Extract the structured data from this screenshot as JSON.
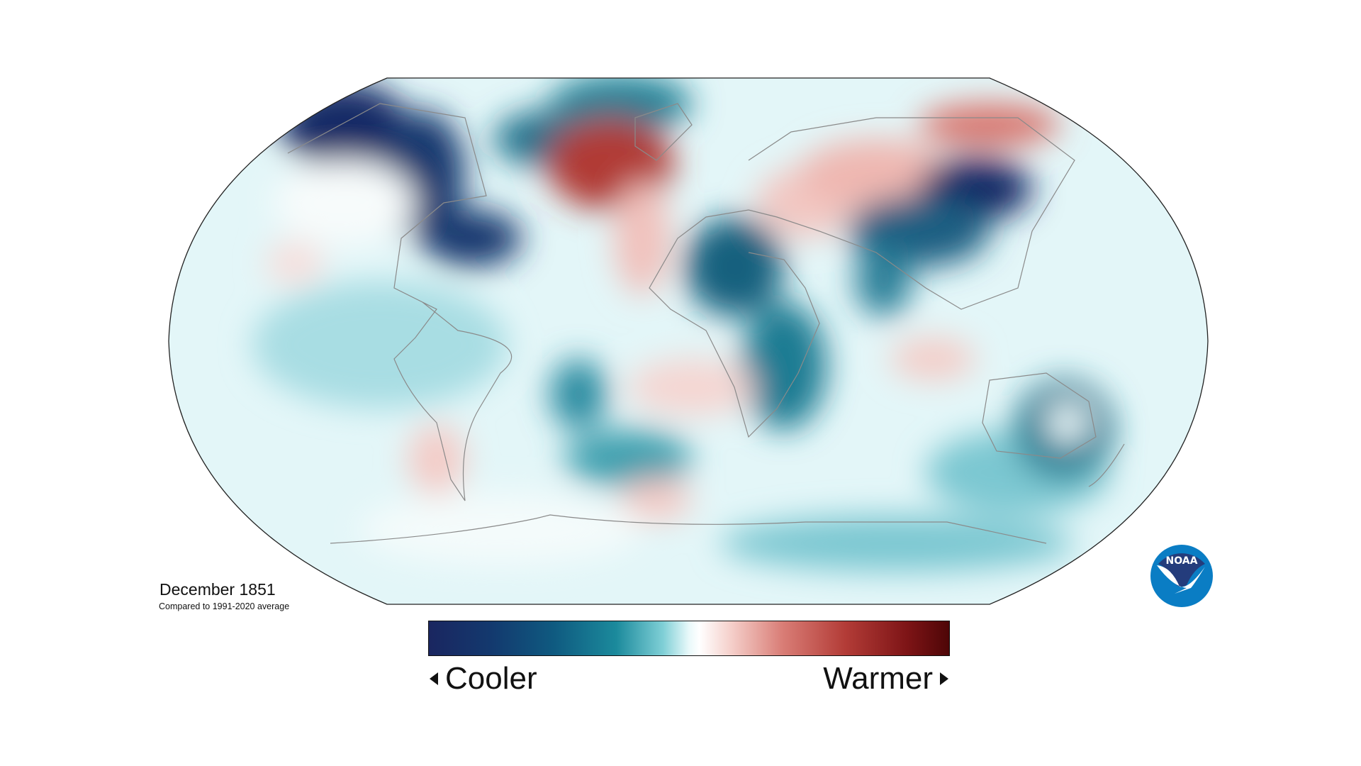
{
  "title": "December 1851",
  "subtitle": "Compared to 1991-2020 average",
  "legend": {
    "cooler_label": "Cooler",
    "warmer_label": "Warmer",
    "cool_color": "#1a2660",
    "neutral_color": "#ffffff",
    "warm_color": "#4e0607"
  },
  "logo": {
    "text": "NOAA",
    "dark_color": "#243c7c",
    "light_color": "#0a7dc4"
  },
  "map": {
    "projection": "Robinson",
    "variable": "temperature anomaly"
  }
}
